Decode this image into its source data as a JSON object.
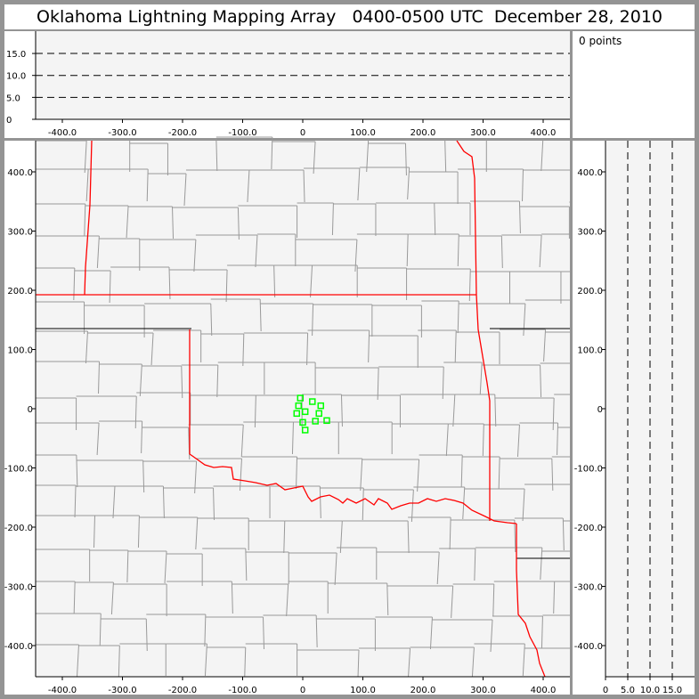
{
  "title": "Oklahoma Lightning Mapping Array   0400-0500 UTC  December 28, 2010",
  "info": {
    "points_label": "0 points"
  },
  "colors": {
    "background": "#949494",
    "plot_bg": "#f4f4f4",
    "county_lines": "#999999",
    "state_lines": "#ff0000",
    "sources": "#00ff00"
  },
  "chart_data": [
    {
      "type": "line",
      "panel": "altitude-vs-east-west",
      "x_ticks": [
        "-400.0",
        "-300.0",
        "-200.0",
        "-100.0",
        "0",
        "100.0",
        "200.0",
        "300.0",
        "400.0"
      ],
      "x_tick_values": [
        -400,
        -300,
        -200,
        -100,
        0,
        100,
        200,
        300,
        400
      ],
      "y_ticks": [
        "0",
        "5.0",
        "10.0",
        "15.0"
      ],
      "y_tick_values": [
        0,
        5,
        10,
        15
      ],
      "xlim": [
        -450,
        445
      ],
      "ylim": [
        0,
        20
      ],
      "grid": "dashed horizontal at 5, 10, 15"
    },
    {
      "type": "scatter",
      "panel": "plan-view-map",
      "x_ticks": [
        "-400.0",
        "-300.0",
        "-200.0",
        "-100.0",
        "0",
        "100.0",
        "200.0",
        "300.0",
        "400.0"
      ],
      "x_tick_values": [
        -400,
        -300,
        -200,
        -100,
        0,
        100,
        200,
        300,
        400
      ],
      "y_ticks": [
        "400.0",
        "300.0",
        "200.0",
        "100.0",
        "0",
        "-100.0",
        "-200.0",
        "-300.0",
        "-400.0"
      ],
      "y_tick_values": [
        400,
        300,
        200,
        100,
        0,
        -100,
        -200,
        -300,
        -400
      ],
      "xlim": [
        -450,
        445
      ],
      "ylim": [
        -450,
        450
      ],
      "marker": "hollow square",
      "points": [
        [
          -4,
          18
        ],
        [
          16,
          12
        ],
        [
          -7,
          5
        ],
        [
          30,
          5
        ],
        [
          -10,
          -8
        ],
        [
          4,
          -5
        ],
        [
          27,
          -8
        ],
        [
          0,
          -23
        ],
        [
          21,
          -21
        ],
        [
          40,
          -20
        ],
        [
          4,
          -36
        ]
      ]
    },
    {
      "type": "line",
      "panel": "north-south-vs-altitude",
      "x_ticks": [
        "0",
        "5.0",
        "10.0",
        "15.0"
      ],
      "x_tick_values": [
        0,
        5,
        10,
        15
      ],
      "y_ticks": [
        "400.0",
        "300.0",
        "200.0",
        "100.0",
        "0",
        "-100.0",
        "-200.0",
        "-300.0",
        "-400.0"
      ],
      "y_tick_values": [
        400,
        300,
        200,
        100,
        0,
        -100,
        -200,
        -300,
        -400
      ],
      "xlim": [
        0,
        20
      ],
      "ylim": [
        -450,
        450
      ],
      "grid": "dashed vertical at 5, 10, 15"
    }
  ]
}
